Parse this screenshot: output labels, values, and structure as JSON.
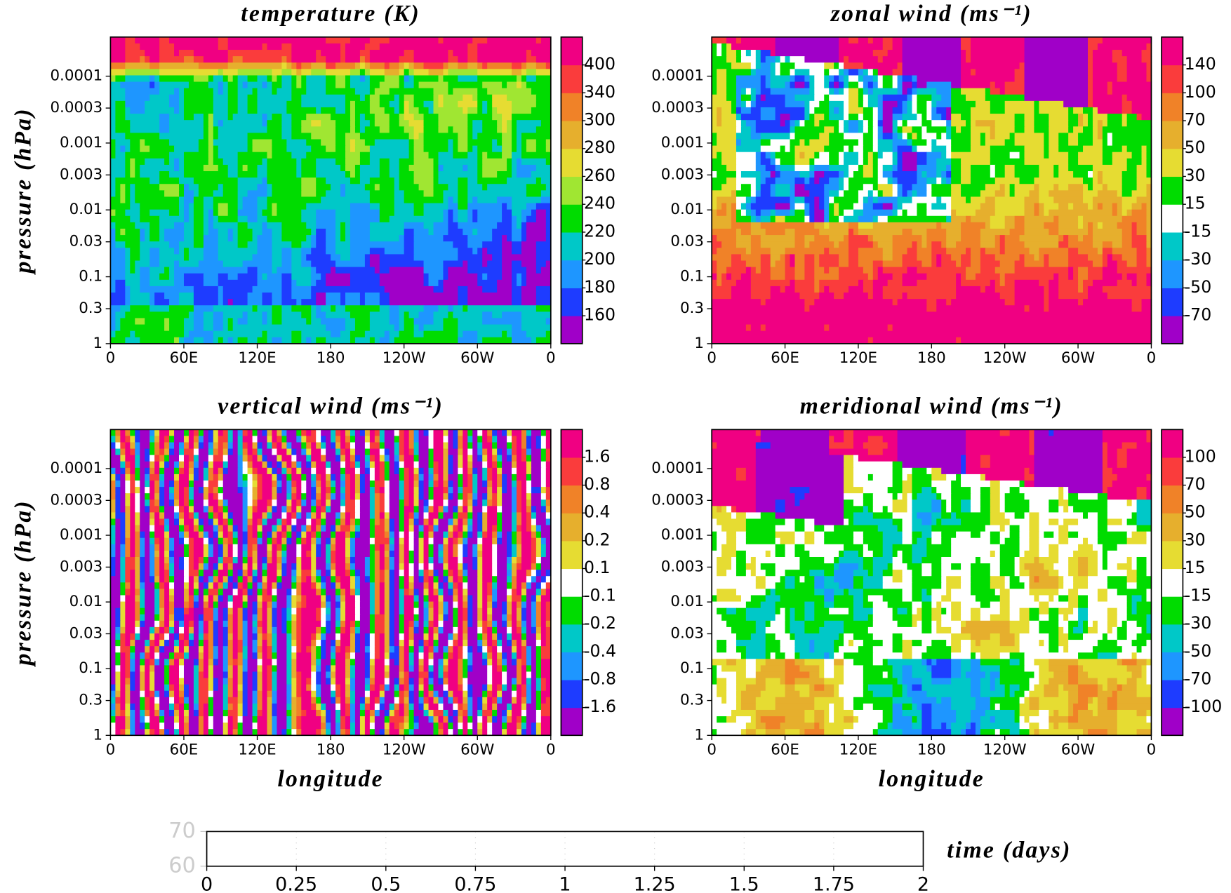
{
  "chart_data": [
    {
      "type": "contour",
      "title": "temperature (K)",
      "ylabel": "pressure (hPa)",
      "log_y": true,
      "xlim": [
        0,
        360
      ],
      "xticks": [
        0,
        {
          "value": 60,
          "label": "60E"
        },
        {
          "value": 120,
          "label": "120E"
        },
        180,
        {
          "value": 240,
          "label": "120W"
        },
        {
          "value": 300,
          "label": "60W"
        },
        {
          "value": 360,
          "label": "0"
        }
      ],
      "ylim": [
        1,
        2.6e-05
      ],
      "yticks": [
        0.0001,
        0.0003,
        0.001,
        0.003,
        0.01,
        0.03,
        0.1,
        0.3,
        1
      ],
      "levels": [
        160,
        180,
        200,
        220,
        240,
        260,
        280,
        300,
        340,
        400
      ],
      "colors": [
        "#a000c8",
        "#1e3cff",
        "#1e96ff",
        "#00c8c8",
        "#00dc00",
        "#a0e632",
        "#e6dc32",
        "#e6af2d",
        "#f08228",
        "#fa3c3c",
        "#f00082"
      ]
    },
    {
      "type": "contour",
      "title": "zonal wind (ms⁻¹)",
      "log_y": true,
      "xlim": [
        0,
        360
      ],
      "xticks": [
        0,
        {
          "value": 60,
          "label": "60E"
        },
        {
          "value": 120,
          "label": "120E"
        },
        180,
        {
          "value": 240,
          "label": "120W"
        },
        {
          "value": 300,
          "label": "60W"
        },
        {
          "value": 360,
          "label": "0"
        }
      ],
      "ylim": [
        1,
        2.6e-05
      ],
      "yticks": [
        0.0001,
        0.0003,
        0.001,
        0.003,
        0.01,
        0.03,
        0.1,
        0.3,
        1
      ],
      "levels": [
        -70,
        -50,
        -30,
        -15,
        15,
        30,
        50,
        70,
        100,
        140
      ],
      "colors": [
        "#a000c8",
        "#1e3cff",
        "#1e96ff",
        "#00c8c8",
        "#ffffff",
        "#00dc00",
        "#e6dc32",
        "#e6af2d",
        "#f08228",
        "#fa3c3c",
        "#f00082"
      ]
    },
    {
      "type": "contour",
      "title": "vertical wind (ms⁻¹)",
      "ylabel": "pressure (hPa)",
      "xlabel": "longitude",
      "log_y": true,
      "xlim": [
        0,
        360
      ],
      "xticks": [
        0,
        {
          "value": 60,
          "label": "60E"
        },
        {
          "value": 120,
          "label": "120E"
        },
        180,
        {
          "value": 240,
          "label": "120W"
        },
        {
          "value": 300,
          "label": "60W"
        },
        {
          "value": 360,
          "label": "0"
        }
      ],
      "ylim": [
        1,
        2.6e-05
      ],
      "yticks": [
        0.0001,
        0.0003,
        0.001,
        0.003,
        0.01,
        0.03,
        0.1,
        0.3,
        1
      ],
      "levels": [
        -1.6,
        -0.8,
        -0.4,
        -0.2,
        -0.1,
        0.1,
        0.2,
        0.4,
        0.8,
        1.6
      ],
      "colors": [
        "#a000c8",
        "#1e3cff",
        "#1e96ff",
        "#00c8c8",
        "#00dc00",
        "#ffffff",
        "#e6dc32",
        "#e6af2d",
        "#f08228",
        "#fa3c3c",
        "#f00082"
      ]
    },
    {
      "type": "contour",
      "title": "meridional wind (ms⁻¹)",
      "xlabel": "longitude",
      "log_y": true,
      "xlim": [
        0,
        360
      ],
      "xticks": [
        0,
        {
          "value": 60,
          "label": "60E"
        },
        {
          "value": 120,
          "label": "120E"
        },
        180,
        {
          "value": 240,
          "label": "120W"
        },
        {
          "value": 300,
          "label": "60W"
        },
        {
          "value": 360,
          "label": "0"
        }
      ],
      "ylim": [
        1,
        2.6e-05
      ],
      "yticks": [
        0.0001,
        0.0003,
        0.001,
        0.003,
        0.01,
        0.03,
        0.1,
        0.3,
        1
      ],
      "levels": [
        -100,
        -70,
        -50,
        -30,
        -15,
        15,
        30,
        50,
        70,
        100
      ],
      "colors": [
        "#a000c8",
        "#1e3cff",
        "#1e96ff",
        "#00c8c8",
        "#00dc00",
        "#ffffff",
        "#e6dc32",
        "#e6af2d",
        "#f08228",
        "#fa3c3c",
        "#f00082"
      ]
    },
    {
      "type": "timeline",
      "xlabel": "time (days)",
      "xlim": [
        0,
        2
      ],
      "xticks": [
        0,
        0.25,
        0.5,
        0.75,
        1,
        1.25,
        1.5,
        1.75,
        2
      ],
      "ylim": [
        60,
        70
      ],
      "yticks": [
        60,
        70
      ]
    }
  ]
}
